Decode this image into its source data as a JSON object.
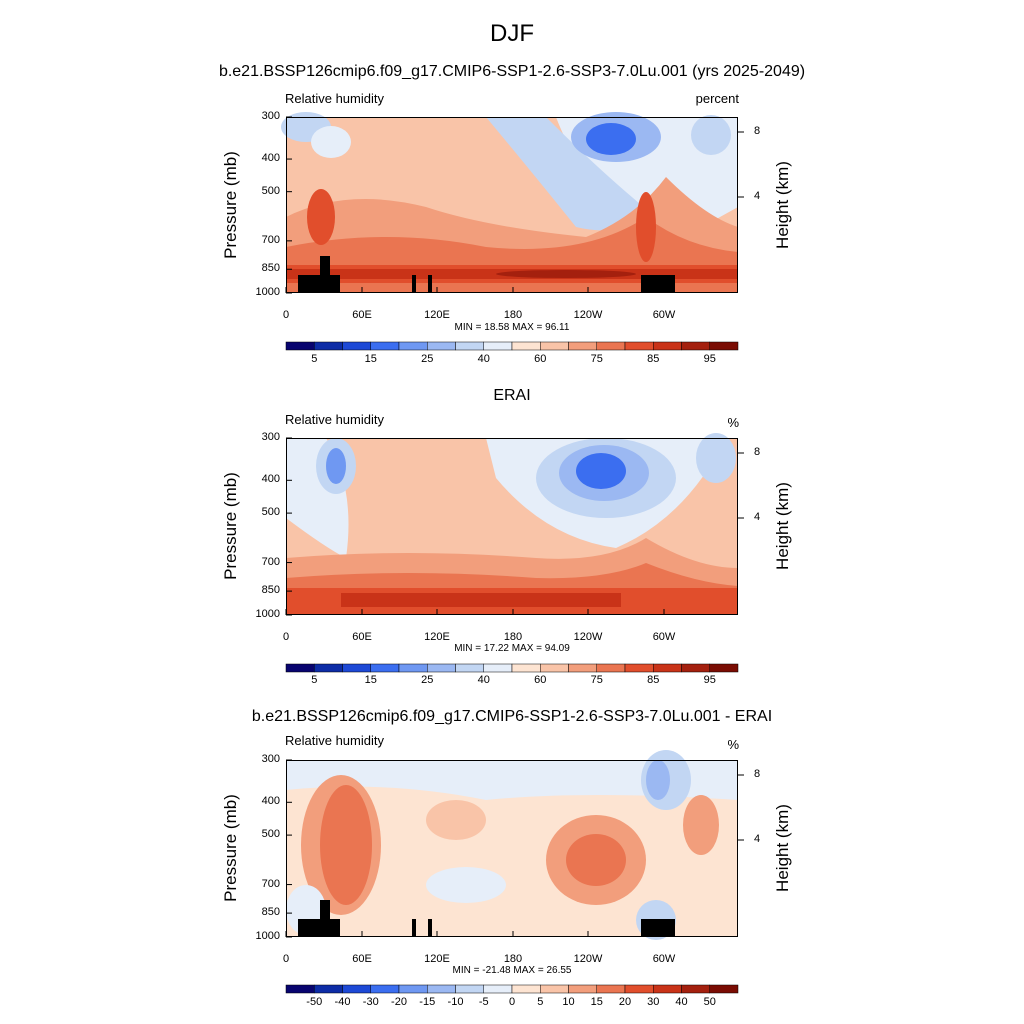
{
  "figure": {
    "title": "DJF",
    "season": "DJF"
  },
  "panels": [
    {
      "title": "b.e21.BSSP126cmip6.f09_g17.CMIP6-SSP1-2.6-SSP3-7.0Lu.001 (yrs 2025-2049)",
      "left_label": "Relative humidity",
      "right_label": "percent",
      "ylabel": "Pressure (mb)",
      "right_axis_label": "Height (km)",
      "y_ticks": [
        "300",
        "400",
        "500",
        "700",
        "850",
        "1000"
      ],
      "right_ticks": [
        "8",
        "4"
      ],
      "x_ticks": [
        "0",
        "60E",
        "120E",
        "180",
        "120W",
        "60W"
      ],
      "stats": "MIN =  18.58  MAX =  96.11",
      "colorbar_ticks": [
        "5",
        "15",
        "25",
        "40",
        "60",
        "75",
        "85",
        "95"
      ]
    },
    {
      "title": "ERAI",
      "left_label": "Relative humidity",
      "right_label": "%",
      "ylabel": "Pressure (mb)",
      "right_axis_label": "Height (km)",
      "y_ticks": [
        "300",
        "400",
        "500",
        "700",
        "850",
        "1000"
      ],
      "right_ticks": [
        "8",
        "4"
      ],
      "x_ticks": [
        "0",
        "60E",
        "120E",
        "180",
        "120W",
        "60W"
      ],
      "stats": "MIN =  17.22  MAX =  94.09",
      "colorbar_ticks": [
        "5",
        "15",
        "25",
        "40",
        "60",
        "75",
        "85",
        "95"
      ]
    },
    {
      "title": "b.e21.BSSP126cmip6.f09_g17.CMIP6-SSP1-2.6-SSP3-7.0Lu.001 - ERAI",
      "left_label": "Relative humidity",
      "right_label": "%",
      "ylabel": "Pressure (mb)",
      "right_axis_label": "Height (km)",
      "y_ticks": [
        "300",
        "400",
        "500",
        "700",
        "850",
        "1000"
      ],
      "right_ticks": [
        "8",
        "4"
      ],
      "x_ticks": [
        "0",
        "60E",
        "120E",
        "180",
        "120W",
        "60W"
      ],
      "stats": "MIN = -21.48  MAX =  26.55",
      "colorbar_ticks": [
        "-50",
        "-40",
        "-30",
        "-20",
        "-15",
        "-10",
        "-5",
        "0",
        "5",
        "10",
        "15",
        "20",
        "30",
        "40",
        "50"
      ]
    }
  ],
  "colors": {
    "palette": [
      "#08046f",
      "#0d2ca6",
      "#1d49d6",
      "#3b6ef0",
      "#6f98f2",
      "#9bb8f2",
      "#c2d6f3",
      "#e6eef9",
      "#fde4d2",
      "#f9c4a8",
      "#f29e7c",
      "#ea7551",
      "#e14e2c",
      "#c93318",
      "#a4200e",
      "#7a0c03"
    ],
    "topography": "#000000"
  },
  "chart_data": [
    {
      "type": "heatmap",
      "title": "b.e21.BSSP126cmip6.f09_g17.CMIP6-SSP1-2.6-SSP3-7.0Lu.001 (yrs 2025-2049)",
      "variable": "Relative humidity",
      "units": "percent",
      "xlabel": "",
      "ylabel": "Pressure (mb)",
      "x_ticks": [
        "0",
        "60E",
        "120E",
        "180",
        "120W",
        "60W"
      ],
      "y_ticks": [
        300,
        400,
        500,
        700,
        850,
        1000
      ],
      "right_axis": {
        "label": "Height (km)",
        "ticks": [
          8,
          4
        ]
      },
      "min": 18.58,
      "max": 96.11,
      "levels": [
        5,
        10,
        15,
        20,
        25,
        30,
        40,
        50,
        60,
        65,
        75,
        80,
        85,
        90,
        95
      ],
      "colorbar_ticks": [
        5,
        15,
        25,
        40,
        60,
        75,
        85,
        95
      ],
      "log_y": true
    },
    {
      "type": "heatmap",
      "title": "ERAI",
      "variable": "Relative humidity",
      "units": "%",
      "xlabel": "",
      "ylabel": "Pressure (mb)",
      "x_ticks": [
        "0",
        "60E",
        "120E",
        "180",
        "120W",
        "60W"
      ],
      "y_ticks": [
        300,
        400,
        500,
        700,
        850,
        1000
      ],
      "right_axis": {
        "label": "Height (km)",
        "ticks": [
          8,
          4
        ]
      },
      "min": 17.22,
      "max": 94.09,
      "levels": [
        5,
        10,
        15,
        20,
        25,
        30,
        40,
        50,
        60,
        65,
        75,
        80,
        85,
        90,
        95
      ],
      "colorbar_ticks": [
        5,
        15,
        25,
        40,
        60,
        75,
        85,
        95
      ],
      "log_y": true
    },
    {
      "type": "heatmap",
      "title": "b.e21.BSSP126cmip6.f09_g17.CMIP6-SSP1-2.6-SSP3-7.0Lu.001 - ERAI",
      "variable": "Relative humidity",
      "units": "%",
      "xlabel": "",
      "ylabel": "Pressure (mb)",
      "x_ticks": [
        "0",
        "60E",
        "120E",
        "180",
        "120W",
        "60W"
      ],
      "y_ticks": [
        300,
        400,
        500,
        700,
        850,
        1000
      ],
      "right_axis": {
        "label": "Height (km)",
        "ticks": [
          8,
          4
        ]
      },
      "min": -21.48,
      "max": 26.55,
      "levels": [
        -50,
        -40,
        -30,
        -20,
        -15,
        -10,
        -5,
        0,
        5,
        10,
        15,
        20,
        30,
        40,
        50
      ],
      "colorbar_ticks": [
        -50,
        -40,
        -30,
        -20,
        -15,
        -10,
        -5,
        0,
        5,
        10,
        15,
        20,
        30,
        40,
        50
      ],
      "log_y": true
    }
  ]
}
